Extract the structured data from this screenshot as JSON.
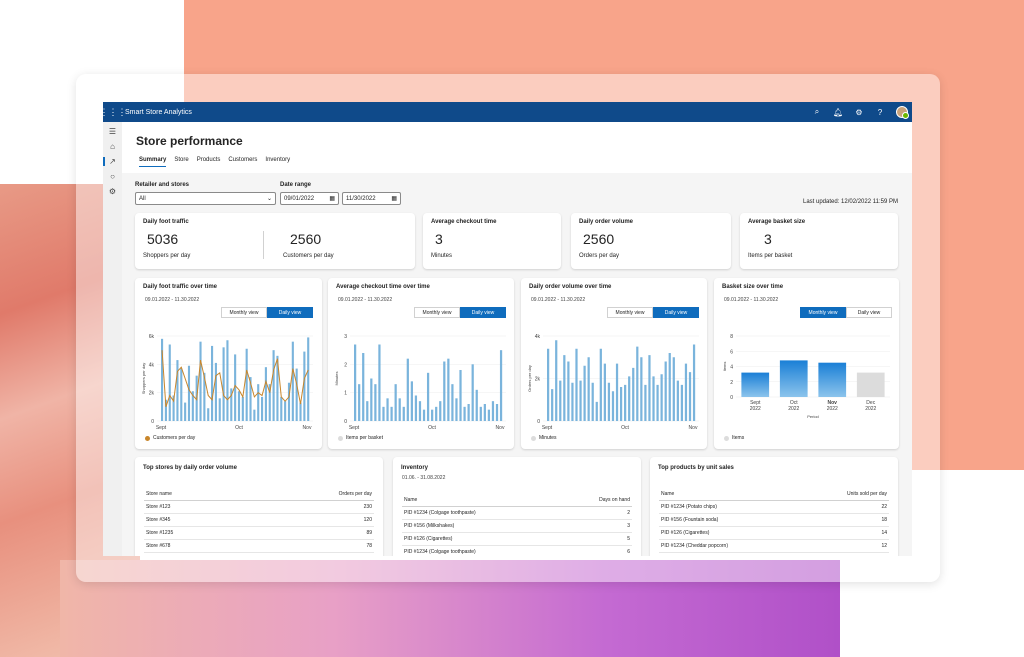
{
  "app": {
    "title": "Smart Store Analytics"
  },
  "page": {
    "title": "Store performance",
    "tabs": [
      "Summary",
      "Store",
      "Products",
      "Customers",
      "Inventory"
    ],
    "active_tab": "Summary"
  },
  "filters": {
    "retailer_label": "Retailer and stores",
    "retailer_value": "All",
    "date_label": "Date range",
    "date_start": "09/01/2022",
    "date_end": "11/30/2022",
    "last_updated": "Last updated:  12/02/2022 11:59  PM"
  },
  "kpis": {
    "foot_traffic": {
      "title": "Daily foot traffic",
      "value1": "5036",
      "label1": "Shoppers per day",
      "value2": "2560",
      "label2": "Customers per day"
    },
    "checkout": {
      "title": "Average checkout time",
      "value": "3",
      "label": "Minutes"
    },
    "order_volume": {
      "title": "Daily order volume",
      "value": "2560",
      "label": "Orders per day"
    },
    "basket": {
      "title": "Average basket size",
      "value": "3",
      "label": "Items per basket"
    }
  },
  "toggle_labels": {
    "monthly": "Monthly view",
    "daily": "Daily view"
  },
  "charts": {
    "c1": {
      "title": "Daily foot traffic over time",
      "subtitle": "09.01.2022 - 11.30.2022",
      "ylabel": "Shoppers per day",
      "legend": "Customers per day",
      "active": "daily"
    },
    "c2": {
      "title": "Average checkout time over time",
      "subtitle": "09.01.2022 - 11.30.2022",
      "ylabel": "Minutes",
      "legend": "Items per basket",
      "active": "daily"
    },
    "c3": {
      "title": "Daily order volume over time",
      "subtitle": "09.01.2022 - 11.30.2022",
      "ylabel": "Orders per day",
      "legend": "Minutes",
      "active": "daily"
    },
    "c4": {
      "title": "Basket size over time",
      "subtitle": "09.01.2022 - 11.30.2022",
      "ylabel": "Items",
      "xlabel": "Period",
      "legend": "Items",
      "active": "monthly"
    }
  },
  "chart_data": [
    {
      "type": "bar",
      "title": "Daily foot traffic over time",
      "ylabel": "Shoppers per day",
      "x_ticks": [
        "Sept",
        "Oct",
        "Nov"
      ],
      "y_ticks": [
        "0",
        "2k",
        "4k",
        "6k"
      ],
      "ylim": [
        0,
        6000
      ],
      "series": [
        {
          "name": "Shoppers per day",
          "values": [
            5800,
            1500,
            5400,
            1800,
            4300,
            3700,
            1300,
            3900,
            2100,
            3200,
            5600,
            3400,
            900,
            5300,
            4100,
            1600,
            5200,
            5700,
            2300,
            4700,
            2100,
            1700,
            5100,
            3100,
            800,
            2600,
            1700,
            3800,
            2600,
            5000,
            4600,
            1700,
            1400,
            2700,
            5600,
            3700,
            1300,
            4900,
            5900
          ]
        },
        {
          "name": "Customers per day",
          "type": "line",
          "values": [
            5000,
            1000,
            1800,
            1400,
            3500,
            3800,
            3000,
            2200,
            1800,
            1500,
            4300,
            3100,
            1800,
            1500,
            3200,
            3400,
            1800,
            1500,
            1800,
            2500,
            2200,
            1700,
            3600,
            2700,
            1700,
            2000,
            1800,
            2800,
            2000,
            3600,
            4400,
            1700,
            1400,
            1700,
            3700,
            2600,
            1200,
            3000,
            3600
          ]
        }
      ]
    },
    {
      "type": "bar",
      "title": "Average checkout time over time",
      "ylabel": "Minutes",
      "x_ticks": [
        "Sept",
        "Oct",
        "Nov"
      ],
      "y_ticks": [
        "0",
        "1",
        "2",
        "3"
      ],
      "ylim": [
        0,
        3
      ],
      "series": [
        {
          "name": "Items per basket",
          "values": [
            2.7,
            1.3,
            2.4,
            0.7,
            1.5,
            1.3,
            2.7,
            0.5,
            0.8,
            0.5,
            1.3,
            0.8,
            0.5,
            2.2,
            1.4,
            0.9,
            0.7,
            0.4,
            1.7,
            0.4,
            0.5,
            0.7,
            2.1,
            2.2,
            1.3,
            0.8,
            1.8,
            0.5,
            0.6,
            2.0,
            1.1,
            0.5,
            0.6,
            0.4,
            0.7,
            0.6,
            2.5
          ]
        }
      ]
    },
    {
      "type": "bar",
      "title": "Daily order volume over time",
      "ylabel": "Orders per day",
      "x_ticks": [
        "Sept",
        "Oct",
        "Nov"
      ],
      "y_ticks": [
        "0",
        "2k",
        "4k"
      ],
      "ylim": [
        0,
        4000
      ],
      "series": [
        {
          "name": "Minutes",
          "values": [
            3400,
            1500,
            3800,
            1900,
            3100,
            2800,
            1800,
            3400,
            1900,
            2600,
            3000,
            1800,
            900,
            3400,
            2700,
            1800,
            1400,
            2700,
            1600,
            1700,
            2100,
            2500,
            3500,
            3000,
            1700,
            3100,
            2100,
            1700,
            2200,
            2800,
            3200,
            3000,
            1900,
            1700,
            2700,
            2300,
            3600
          ]
        }
      ]
    },
    {
      "type": "bar",
      "title": "Basket size over time",
      "ylabel": "Items",
      "xlabel": "Period",
      "categories": [
        "Sept 2022",
        "Oct 2022",
        "Nov 2022",
        "Dec 2022"
      ],
      "y_ticks": [
        "0",
        "2",
        "4",
        "6",
        "8"
      ],
      "ylim": [
        0,
        8
      ],
      "series": [
        {
          "name": "Items",
          "values": [
            3.2,
            4.8,
            4.5,
            3.2
          ]
        }
      ]
    }
  ],
  "tables": {
    "top_stores": {
      "title": "Top stores by daily order volume",
      "columns": [
        "Store name",
        "Orders per day"
      ],
      "rows": [
        [
          "Store #123",
          "230"
        ],
        [
          "Store #345",
          "120"
        ],
        [
          "Store #1235",
          "89"
        ],
        [
          "Store #678",
          "78"
        ]
      ]
    },
    "inventory": {
      "title": "Inventory",
      "subtitle": "01.06. - 31.08.2022",
      "columns": [
        "Name",
        "Days on hand"
      ],
      "rows": [
        [
          "PID #1234 (Colgage toothpaste)",
          "2"
        ],
        [
          "PID #156 (Milkshakes)",
          "3"
        ],
        [
          "PID #126 (Cigarettes)",
          "5"
        ],
        [
          "PID #1234 (Colgage toothpaste)",
          "6"
        ]
      ]
    },
    "top_products": {
      "title": "Top products by unit sales",
      "columns": [
        "Name",
        "Units sold per day"
      ],
      "rows": [
        [
          "PID #1234 (Potato chips)",
          "22"
        ],
        [
          "PID #156 (Fountain soda)",
          "18"
        ],
        [
          "PID #126 (Cigarettes)",
          "14"
        ],
        [
          "PID #1234 (Cheddar popcorn)",
          "12"
        ]
      ]
    }
  },
  "colors": {
    "primary": "#0f6cbd",
    "header": "#0f4a8a",
    "bar": "#7ab4dc",
    "line": "#c8862b",
    "grey_bar": "#dcdcdc"
  }
}
